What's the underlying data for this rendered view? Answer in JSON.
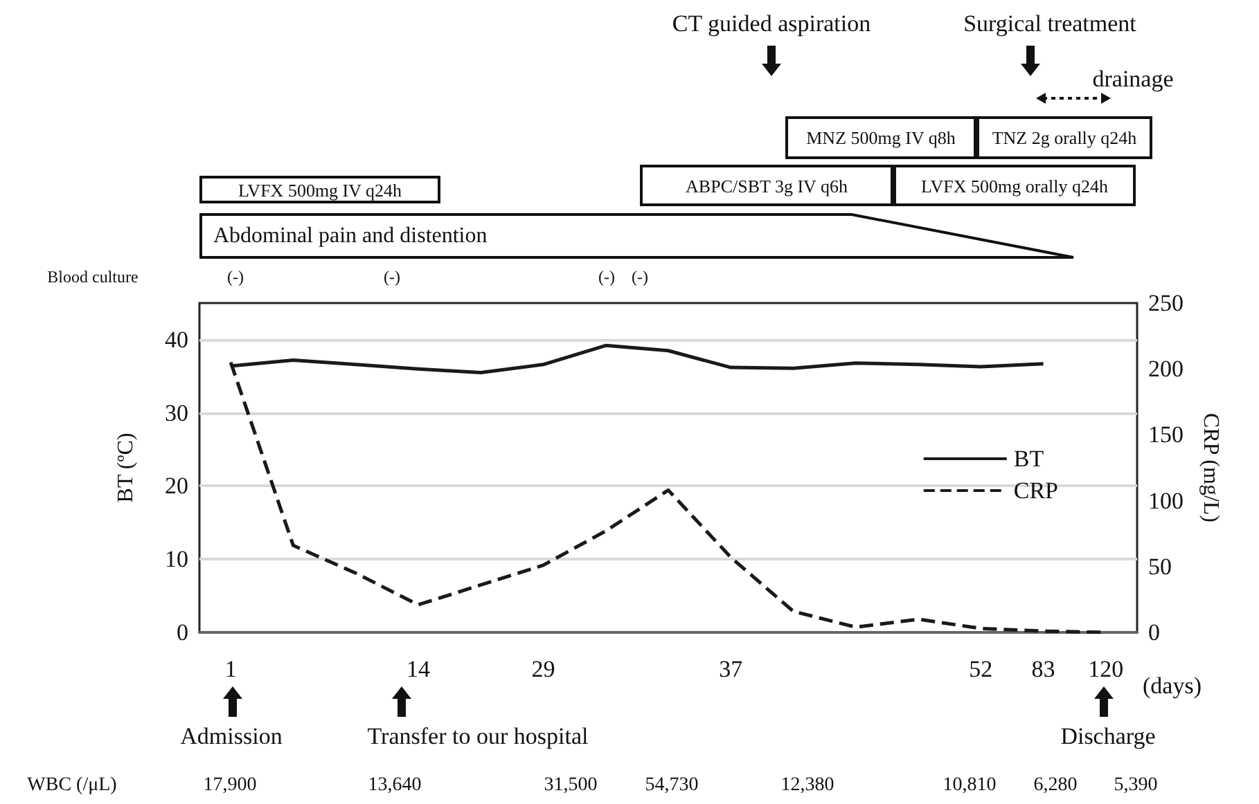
{
  "chart_data": {
    "type": "line",
    "xlabel": "(days)",
    "ylabel": "BT (ºC)",
    "y2label": "CRP (mg/L)",
    "categories": [
      "1",
      null,
      null,
      "14",
      null,
      "29",
      null,
      null,
      "37",
      null,
      null,
      null,
      "52",
      "83",
      "120"
    ],
    "series": [
      {
        "name": "BT",
        "color": "#1a1a1a",
        "line_style": "solid",
        "values": [
          36.4,
          37.2,
          36.6,
          36.0,
          35.5,
          36.6,
          39.2,
          38.5,
          36.2,
          36.1,
          36.8,
          36.6,
          36.3,
          36.7,
          null
        ]
      },
      {
        "name": "CRP",
        "color": "#1a1a1a",
        "line_style": "dashed",
        "axis": "y2",
        "values": [
          205,
          66,
          45,
          21,
          36,
          51,
          77,
          108,
          57,
          16,
          4,
          10,
          3,
          1,
          0
        ]
      }
    ],
    "ylim": [
      0,
      45
    ],
    "yticks": [
      0,
      10,
      20,
      30,
      40
    ],
    "y2lim": [
      0,
      250
    ],
    "y2ticks": [
      0,
      50,
      100,
      150,
      200,
      250
    ],
    "grid": "y",
    "legend": "right",
    "marker": "none",
    "annotations": [
      "CT guided aspiration",
      "Surgical treatment",
      "drainage",
      "MNZ 500mg IV q8h",
      "TNZ 2g orally q24h",
      "ABPC/SBT 3g IV q6h",
      "LVFX 500mg orally q24h",
      "LVFX 500mg IV q24h",
      "Abdominal pain and distention",
      "Blood culture",
      "(-)",
      "(-)",
      "(-)",
      "(-)",
      "Admission",
      "Transfer to our hospital",
      "Discharge",
      "WBC (/μL)",
      "17,900",
      "13,640",
      "31,500",
      "54,730",
      "12,380",
      "10,810",
      "6,280",
      "5,390"
    ]
  }
}
